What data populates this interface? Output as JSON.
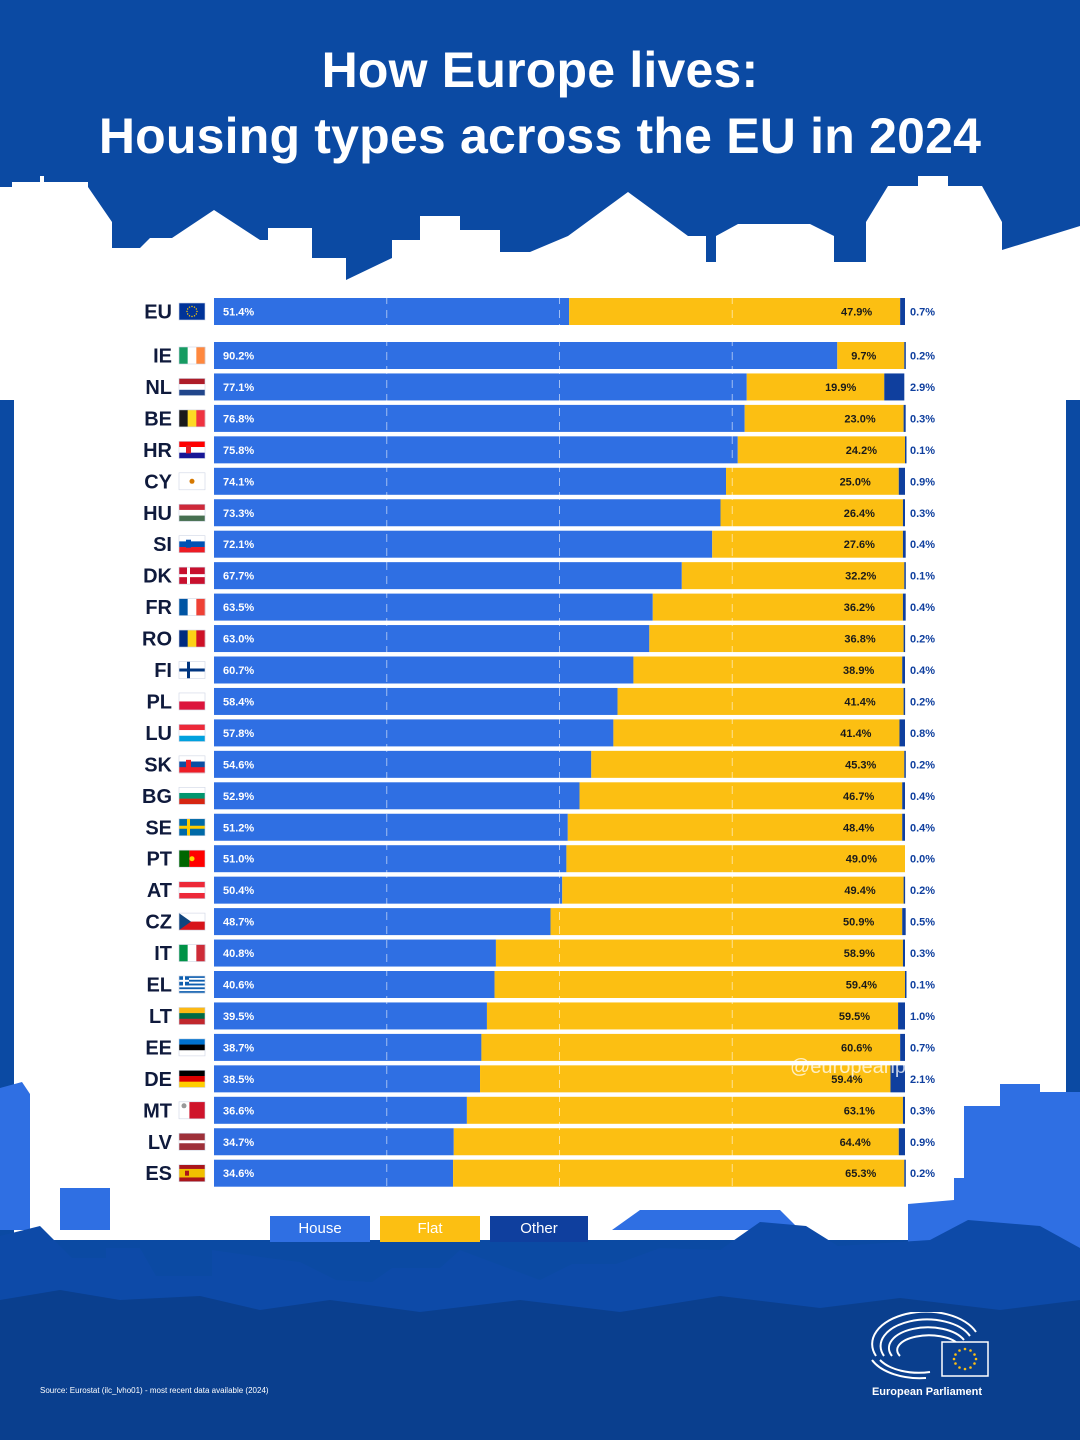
{
  "title_line1": "How Europe lives:",
  "title_line2": "Housing types across the EU in 2024",
  "colors": {
    "house": "#2f6fe3",
    "flat": "#fcbf12",
    "other": "#0f3f9e",
    "background": "#0b4aa3",
    "skyline_light": "#2f6fe3"
  },
  "legend": [
    {
      "label": "House",
      "color": "#2f6fe3"
    },
    {
      "label": "Flat",
      "color": "#fcbf12"
    },
    {
      "label": "Other",
      "color": "#0f3f9e"
    }
  ],
  "source": "Source: Eurostat (ilc_lvho01) - most recent data available (2024)",
  "brand": "European Parliament",
  "watermark": "@europeanparliament",
  "chart_data": {
    "type": "bar",
    "orientation": "horizontal",
    "stacked": true,
    "normalized_percent": true,
    "xlim": [
      0,
      100
    ],
    "categories": [
      "EU",
      "IE",
      "NL",
      "BE",
      "HR",
      "CY",
      "HU",
      "SI",
      "DK",
      "FR",
      "RO",
      "FI",
      "PL",
      "LU",
      "SK",
      "BG",
      "SE",
      "PT",
      "AT",
      "CZ",
      "IT",
      "EL",
      "LT",
      "EE",
      "DE",
      "MT",
      "LV",
      "ES"
    ],
    "series": [
      {
        "name": "House",
        "values": [
          51.4,
          90.2,
          77.1,
          76.8,
          75.8,
          74.1,
          73.3,
          72.1,
          67.7,
          63.5,
          63.0,
          60.7,
          58.4,
          57.8,
          54.6,
          52.9,
          51.2,
          51.0,
          50.4,
          48.7,
          40.8,
          40.6,
          39.5,
          38.7,
          38.5,
          36.6,
          34.7,
          34.6
        ]
      },
      {
        "name": "Flat",
        "values": [
          47.9,
          9.7,
          19.9,
          23.0,
          24.2,
          25.0,
          26.4,
          27.6,
          32.2,
          36.2,
          36.8,
          38.9,
          41.4,
          41.4,
          45.3,
          46.7,
          48.4,
          49.0,
          49.4,
          50.9,
          58.9,
          59.4,
          59.5,
          60.6,
          59.4,
          63.1,
          64.4,
          65.3
        ]
      },
      {
        "name": "Other",
        "values": [
          0.7,
          0.2,
          2.9,
          0.3,
          0.1,
          0.9,
          0.3,
          0.4,
          0.1,
          0.4,
          0.2,
          0.4,
          0.2,
          0.8,
          0.2,
          0.4,
          0.4,
          0.0,
          0.2,
          0.5,
          0.3,
          0.1,
          1.0,
          0.7,
          2.1,
          0.3,
          0.9,
          0.2
        ]
      }
    ],
    "legend_position": "bottom",
    "grid": "dashed vertical"
  }
}
